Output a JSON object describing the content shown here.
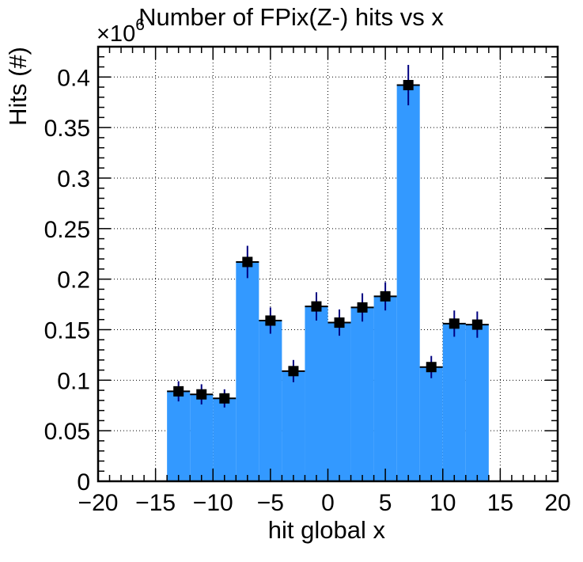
{
  "chart_data": {
    "type": "bar",
    "title": "Number of FPix(Z-) hits vs x",
    "xlabel": "hit global x",
    "ylabel": "Hits (#)",
    "y_exponent_label": "×10",
    "y_exponent_power": "6",
    "xlim": [
      -20,
      20
    ],
    "ylim": [
      0,
      0.43
    ],
    "x_ticks": [
      -20,
      -15,
      -10,
      -5,
      0,
      5,
      10,
      15,
      20
    ],
    "x_tick_labels": [
      "−20",
      "−15",
      "−10",
      "−5",
      "0",
      "5",
      "10",
      "15",
      "20"
    ],
    "y_ticks": [
      0,
      0.05,
      0.1,
      0.15,
      0.2,
      0.25,
      0.3,
      0.35,
      0.4
    ],
    "y_tick_labels": [
      "0",
      "0.05",
      "0.1",
      "0.15",
      "0.2",
      "0.25",
      "0.3",
      "0.35",
      "0.4"
    ],
    "grid": true,
    "bin_edges": [
      -14,
      -12,
      -10,
      -8,
      -6,
      -4,
      -2,
      0,
      2,
      4,
      6,
      8,
      10,
      12,
      14
    ],
    "bin_centers": [
      -13,
      -11,
      -9,
      -7,
      -5,
      -3,
      -1,
      1,
      3,
      5,
      7,
      9,
      11,
      13
    ],
    "values": [
      0.089,
      0.086,
      0.082,
      0.217,
      0.159,
      0.109,
      0.173,
      0.157,
      0.172,
      0.183,
      0.392,
      0.113,
      0.156,
      0.155
    ],
    "errors": [
      0.01,
      0.01,
      0.009,
      0.016,
      0.013,
      0.011,
      0.014,
      0.013,
      0.014,
      0.014,
      0.02,
      0.011,
      0.013,
      0.013
    ],
    "colors": {
      "fill": "#3399ff",
      "bin_edge": "#000000",
      "marker": "#000000",
      "error_bar": "#000080"
    }
  }
}
